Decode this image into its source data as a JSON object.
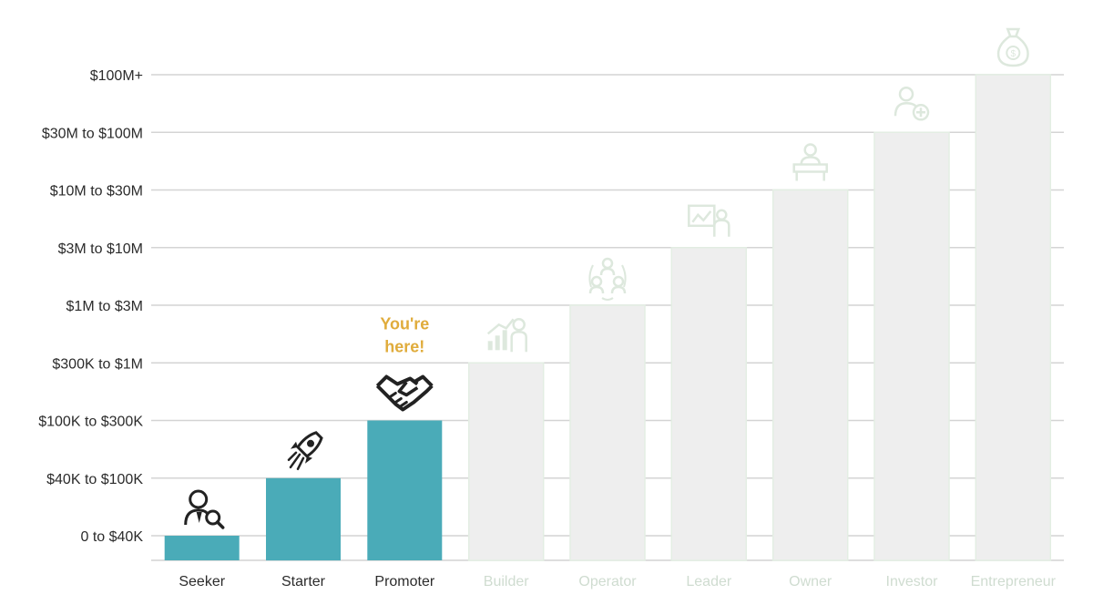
{
  "chart_data": {
    "type": "bar",
    "y_categories": [
      "0 to $40K",
      "$40K to $100K",
      "$100K to $300K",
      "$300K to $1M",
      "$1M to $3M",
      "$3M to $10M",
      "$10M to $30M",
      "$30M to $100M",
      "$100M+"
    ],
    "categories": [
      "Seeker",
      "Starter",
      "Promoter",
      "Builder",
      "Operator",
      "Leader",
      "Owner",
      "Investor",
      "Entrepreneur"
    ],
    "values": [
      "0 to $40K",
      "$40K to $100K",
      "$100K to $300K",
      "$300K to $1M",
      "$1M to $3M",
      "$3M to $10M",
      "$10M to $30M",
      "$30M to $100M",
      "$100M+"
    ],
    "active": [
      true,
      true,
      true,
      false,
      false,
      false,
      false,
      false,
      false
    ],
    "icons": [
      "person-search-icon",
      "rocket-icon",
      "handshake-icon",
      "growth-chart-person-icon",
      "team-network-icon",
      "presentation-person-icon",
      "desk-person-icon",
      "person-add-icon",
      "money-bag-icon"
    ],
    "annotation": {
      "text_line1": "You're",
      "text_line2": "here!",
      "category": "Promoter"
    },
    "grid": true,
    "colors": {
      "active_bar": "#4aabb8",
      "inactive_bar": "#eeeeee",
      "inactive_outline": "#e3eee3",
      "gridline": "#d4d4d4",
      "axis_text": "#2b2b2b",
      "inactive_text": "#cfdcd0",
      "inactive_icon": "#dde8dd",
      "annotation": "#e0ac3c",
      "icon_dark": "#222222"
    }
  }
}
